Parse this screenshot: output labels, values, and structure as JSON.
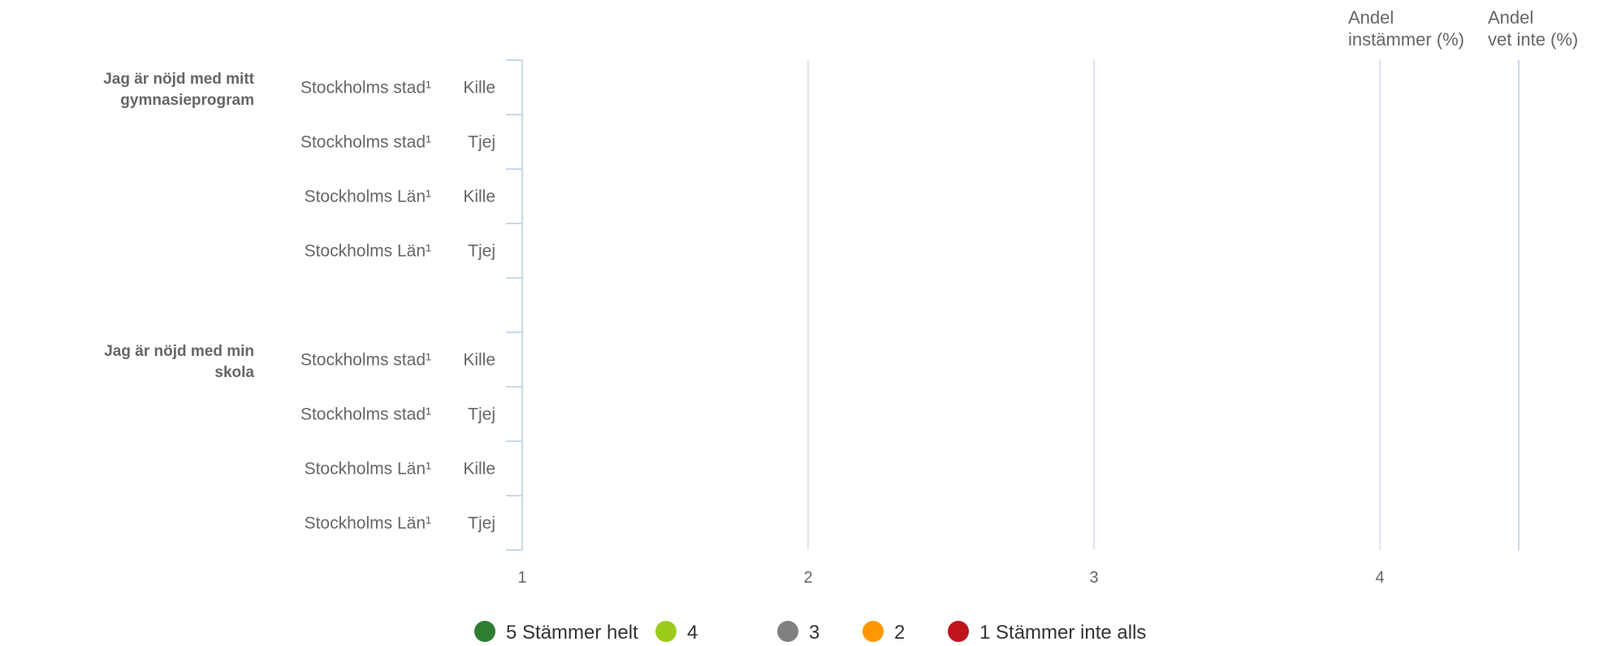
{
  "chart_data": {
    "type": "bar",
    "orientation": "horizontal",
    "stacked": true,
    "title": "",
    "xlabel": "",
    "ylabel": "",
    "xlim": [
      1,
      4
    ],
    "x_ticks": [
      "1",
      "2",
      "3",
      "4"
    ],
    "grid": true,
    "legend_placement": "bottom-center",
    "groups": [
      {
        "question": "Jag är nöjd med mitt gymnasieprogram",
        "rows": [
          {
            "area": "Stockholms stad¹",
            "gender": "Kille"
          },
          {
            "area": "Stockholms stad¹",
            "gender": "Tjej"
          },
          {
            "area": "Stockholms Län¹",
            "gender": "Kille"
          },
          {
            "area": "Stockholms Län¹",
            "gender": "Tjej"
          }
        ]
      },
      {
        "question": "Jag är nöjd med min skola",
        "rows": [
          {
            "area": "Stockholms stad¹",
            "gender": "Kille"
          },
          {
            "area": "Stockholms stad¹",
            "gender": "Tjej"
          },
          {
            "area": "Stockholms Län¹",
            "gender": "Kille"
          },
          {
            "area": "Stockholms Län¹",
            "gender": "Tjej"
          }
        ]
      }
    ],
    "extra_columns": [
      "Andel instämmer (%)",
      "Andel vet inte (%)"
    ],
    "series": [
      {
        "name": "5 Stämmer helt",
        "color": "#2e7d32"
      },
      {
        "name": "4",
        "color": "#9ccc1a"
      },
      {
        "name": "3",
        "color": "#808080"
      },
      {
        "name": "2",
        "color": "#ff9800"
      },
      {
        "name": "1 Stämmer inte alls",
        "color": "#c0141c"
      }
    ]
  }
}
